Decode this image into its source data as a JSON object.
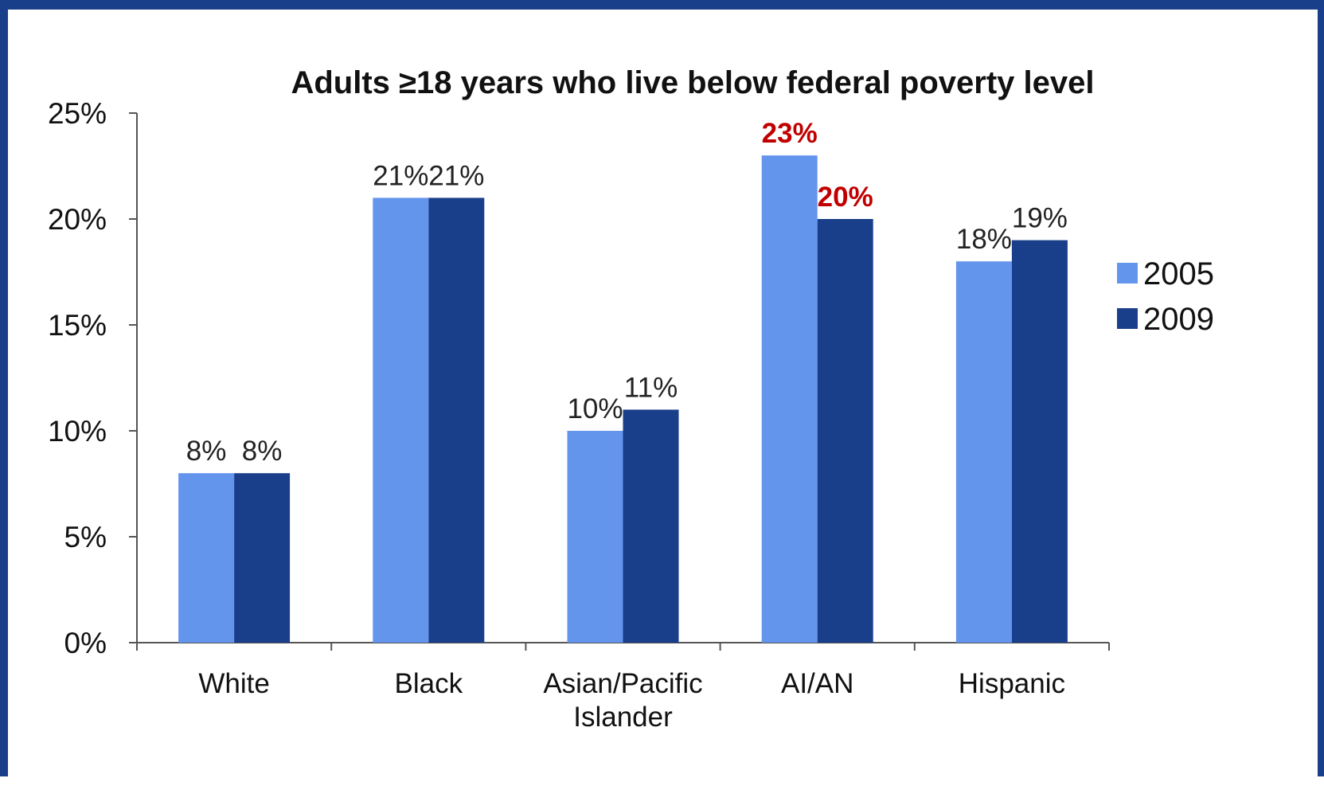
{
  "chart_data": {
    "type": "bar",
    "title": "Adults ≥18 years who live below federal poverty level",
    "categories": [
      "White",
      "Black",
      "Asian/Pacific Islander",
      "AI/AN",
      "Hispanic"
    ],
    "category_label_lines": [
      [
        "White"
      ],
      [
        "Black"
      ],
      [
        "Asian/Pacific",
        "Islander"
      ],
      [
        "AI/AN"
      ],
      [
        "Hispanic"
      ]
    ],
    "series": [
      {
        "name": "2005",
        "color": "#6495ed",
        "values": [
          8,
          21,
          10,
          23,
          18
        ],
        "labels": [
          "8%",
          "21%",
          "10%",
          "23%",
          "18%"
        ],
        "highlight": [
          false,
          false,
          false,
          true,
          false
        ]
      },
      {
        "name": "2009",
        "color": "#1a3f8a",
        "values": [
          8,
          21,
          11,
          20,
          19
        ],
        "labels": [
          "8%",
          "21%",
          "11%",
          "20%",
          "19%"
        ],
        "highlight": [
          false,
          false,
          false,
          true,
          false
        ]
      }
    ],
    "ylim": [
      0,
      25
    ],
    "yticks": [
      0,
      5,
      10,
      15,
      20,
      25
    ],
    "ytick_labels": [
      "0%",
      "5%",
      "10%",
      "15%",
      "20%",
      "25%"
    ],
    "xlabel": "",
    "ylabel": "",
    "highlight_color": "#c00000",
    "grid": false,
    "legend_position": "right"
  }
}
